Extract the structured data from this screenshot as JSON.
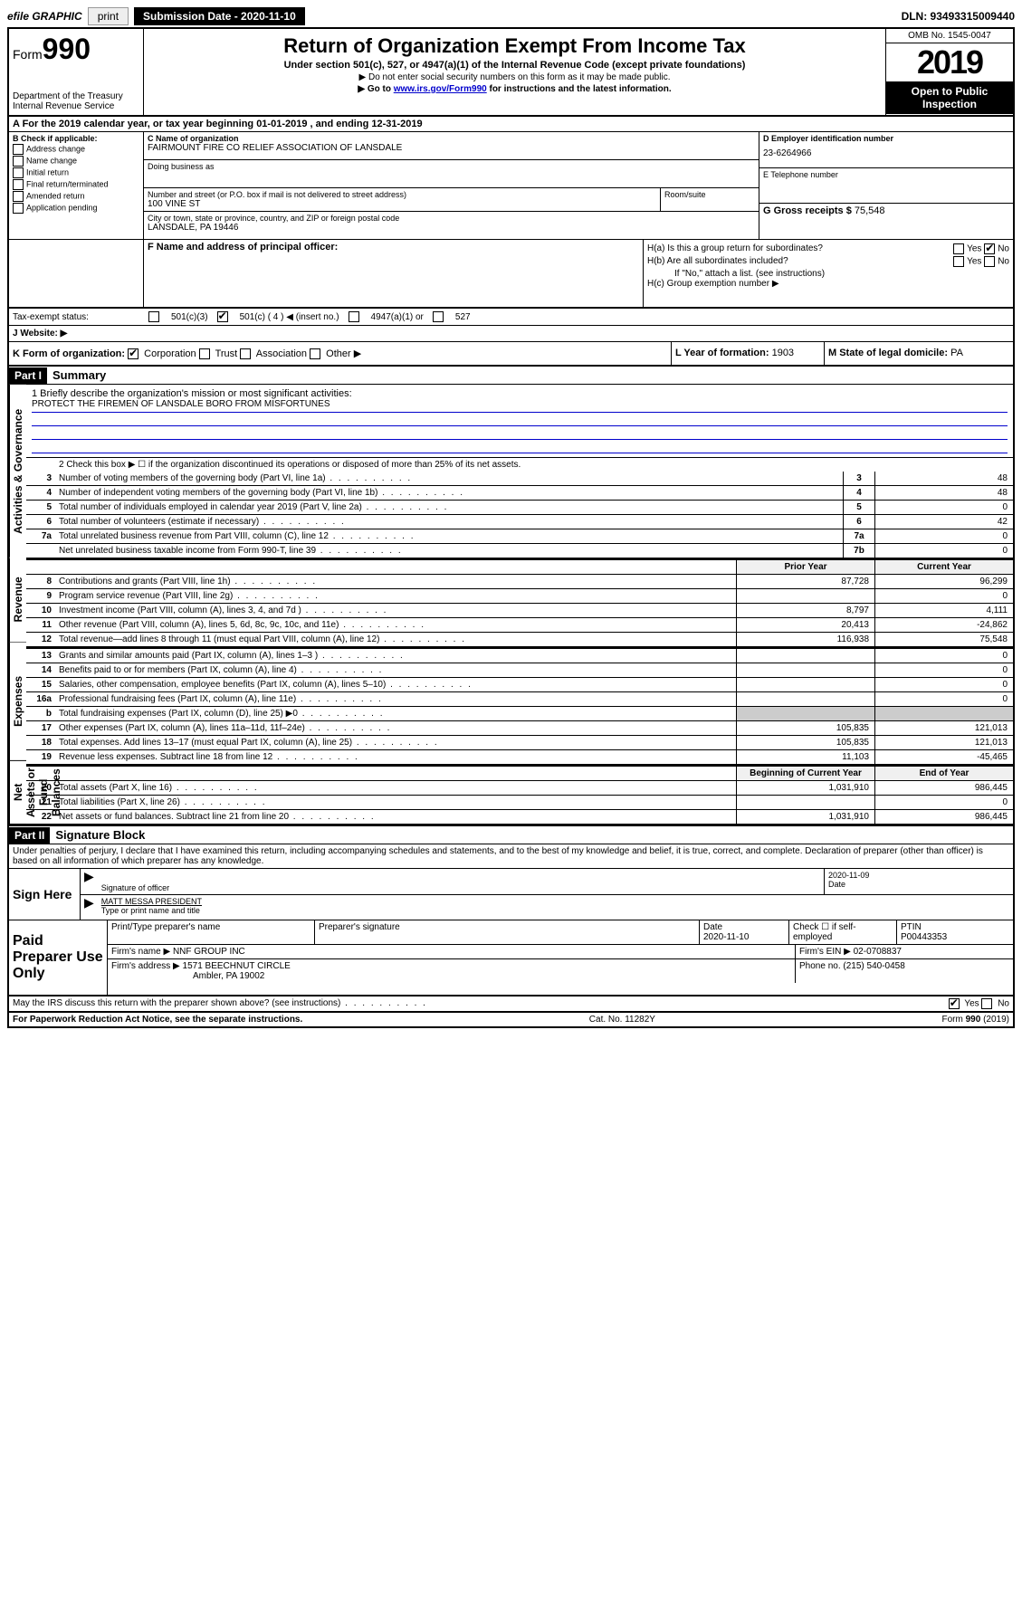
{
  "topbar": {
    "efile": "efile GRAPHIC",
    "print": "print",
    "submission_label": "Submission Date - 2020-11-10",
    "dln": "DLN: 93493315009440"
  },
  "header": {
    "form_prefix": "Form",
    "form_number": "990",
    "dept": "Department of the Treasury\nInternal Revenue Service",
    "title": "Return of Organization Exempt From Income Tax",
    "subtitle": "Under section 501(c), 527, or 4947(a)(1) of the Internal Revenue Code (except private foundations)",
    "note1": "▶ Do not enter social security numbers on this form as it may be made public.",
    "note2_prefix": "▶ Go to ",
    "note2_link": "www.irs.gov/Form990",
    "note2_suffix": " for instructions and the latest information.",
    "omb": "OMB No. 1545-0047",
    "year": "2019",
    "open": "Open to Public Inspection"
  },
  "rowA": {
    "text": "A For the 2019 calendar year, or tax year beginning 01-01-2019     , and ending 12-31-2019"
  },
  "boxB": {
    "label": "B Check if applicable:",
    "opts": [
      "Address change",
      "Name change",
      "Initial return",
      "Final return/terminated",
      "Amended return",
      "Application pending"
    ]
  },
  "boxC": {
    "name_label": "C Name of organization",
    "name": "FAIRMOUNT FIRE CO RELIEF ASSOCIATION OF LANSDALE",
    "dba_label": "Doing business as",
    "addr_label": "Number and street (or P.O. box if mail is not delivered to street address)",
    "room_label": "Room/suite",
    "addr": "100 VINE ST",
    "city_label": "City or town, state or province, country, and ZIP or foreign postal code",
    "city": "LANSDALE, PA  19446"
  },
  "boxD": {
    "label": "D Employer identification number",
    "value": "23-6264966"
  },
  "boxE": {
    "label": "E Telephone number",
    "value": ""
  },
  "boxG": {
    "label": "G Gross receipts $",
    "value": "75,548"
  },
  "boxF": {
    "label": "F Name and address of principal officer:"
  },
  "boxH": {
    "a": "H(a)  Is this a group return for subordinates?",
    "b": "H(b)  Are all subordinates included?",
    "b_note": "If \"No,\" attach a list. (see instructions)",
    "c": "H(c)  Group exemption number ▶",
    "yes": "Yes",
    "no": "No"
  },
  "taxExempt": {
    "label": "Tax-exempt status:",
    "c3": "501(c)(3)",
    "c": "501(c) ( 4 ) ◀ (insert no.)",
    "a1": "4947(a)(1) or",
    "s527": "527"
  },
  "websiteJ": {
    "label": "J   Website: ▶"
  },
  "rowK": {
    "label": "K Form of organization:",
    "corp": "Corporation",
    "trust": "Trust",
    "assoc": "Association",
    "other": "Other ▶"
  },
  "rowL": {
    "label": "L Year of formation:",
    "value": "1903"
  },
  "rowM": {
    "label": "M State of legal domicile:",
    "value": "PA"
  },
  "part1": {
    "header": "Part I",
    "title": "Summary",
    "line1_label": "1   Briefly describe the organization's mission or most significant activities:",
    "line1_value": "PROTECT THE FIREMEN OF LANSDALE BORO FROM MISFORTUNES",
    "line2": "2   Check this box ▶ ☐  if the organization discontinued its operations or disposed of more than 25% of its net assets.",
    "rows_gov": [
      {
        "n": "3",
        "desc": "Number of voting members of the governing body (Part VI, line 1a)",
        "box": "3",
        "val": "48"
      },
      {
        "n": "4",
        "desc": "Number of independent voting members of the governing body (Part VI, line 1b)",
        "box": "4",
        "val": "48"
      },
      {
        "n": "5",
        "desc": "Total number of individuals employed in calendar year 2019 (Part V, line 2a)",
        "box": "5",
        "val": "0"
      },
      {
        "n": "6",
        "desc": "Total number of volunteers (estimate if necessary)",
        "box": "6",
        "val": "42"
      },
      {
        "n": "7a",
        "desc": "Total unrelated business revenue from Part VIII, column (C), line 12",
        "box": "7a",
        "val": "0"
      },
      {
        "n": "",
        "desc": "Net unrelated business taxable income from Form 990-T, line 39",
        "box": "7b",
        "val": "0"
      }
    ],
    "col_prior": "Prior Year",
    "col_current": "Current Year",
    "rows_rev": [
      {
        "n": "8",
        "desc": "Contributions and grants (Part VIII, line 1h)",
        "prior": "87,728",
        "cur": "96,299"
      },
      {
        "n": "9",
        "desc": "Program service revenue (Part VIII, line 2g)",
        "prior": "",
        "cur": "0"
      },
      {
        "n": "10",
        "desc": "Investment income (Part VIII, column (A), lines 3, 4, and 7d )",
        "prior": "8,797",
        "cur": "4,111"
      },
      {
        "n": "11",
        "desc": "Other revenue (Part VIII, column (A), lines 5, 6d, 8c, 9c, 10c, and 11e)",
        "prior": "20,413",
        "cur": "-24,862"
      },
      {
        "n": "12",
        "desc": "Total revenue—add lines 8 through 11 (must equal Part VIII, column (A), line 12)",
        "prior": "116,938",
        "cur": "75,548"
      }
    ],
    "rows_exp": [
      {
        "n": "13",
        "desc": "Grants and similar amounts paid (Part IX, column (A), lines 1–3 )",
        "prior": "",
        "cur": "0"
      },
      {
        "n": "14",
        "desc": "Benefits paid to or for members (Part IX, column (A), line 4)",
        "prior": "",
        "cur": "0"
      },
      {
        "n": "15",
        "desc": "Salaries, other compensation, employee benefits (Part IX, column (A), lines 5–10)",
        "prior": "",
        "cur": "0"
      },
      {
        "n": "16a",
        "desc": "Professional fundraising fees (Part IX, column (A), line 11e)",
        "prior": "",
        "cur": "0"
      },
      {
        "n": "b",
        "desc": "Total fundraising expenses (Part IX, column (D), line 25) ▶0",
        "prior": "SHADE",
        "cur": "SHADE"
      },
      {
        "n": "17",
        "desc": "Other expenses (Part IX, column (A), lines 11a–11d, 11f–24e)",
        "prior": "105,835",
        "cur": "121,013"
      },
      {
        "n": "18",
        "desc": "Total expenses. Add lines 13–17 (must equal Part IX, column (A), line 25)",
        "prior": "105,835",
        "cur": "121,013"
      },
      {
        "n": "19",
        "desc": "Revenue less expenses. Subtract line 18 from line 12",
        "prior": "11,103",
        "cur": "-45,465"
      }
    ],
    "col_begin": "Beginning of Current Year",
    "col_end": "End of Year",
    "rows_net": [
      {
        "n": "20",
        "desc": "Total assets (Part X, line 16)",
        "prior": "1,031,910",
        "cur": "986,445"
      },
      {
        "n": "21",
        "desc": "Total liabilities (Part X, line 26)",
        "prior": "",
        "cur": "0"
      },
      {
        "n": "22",
        "desc": "Net assets or fund balances. Subtract line 21 from line 20",
        "prior": "1,031,910",
        "cur": "986,445"
      }
    ],
    "vlabels": {
      "gov": "Activities & Governance",
      "rev": "Revenue",
      "exp": "Expenses",
      "net": "Net Assets or Fund Balances"
    }
  },
  "part2": {
    "header": "Part II",
    "title": "Signature Block",
    "perjury": "Under penalties of perjury, I declare that I have examined this return, including accompanying schedules and statements, and to the best of my knowledge and belief, it is true, correct, and complete. Declaration of preparer (other than officer) is based on all information of which preparer has any knowledge."
  },
  "sign": {
    "label": "Sign Here",
    "sig_label": "Signature of officer",
    "date_label": "Date",
    "date": "2020-11-09",
    "name": "MATT MESSA  PRESIDENT",
    "name_label": "Type or print name and title"
  },
  "paid": {
    "label": "Paid Preparer Use Only",
    "h1": "Print/Type preparer's name",
    "h2": "Preparer's signature",
    "h3": "Date",
    "h3v": "2020-11-10",
    "h4": "Check ☐ if self-employed",
    "h5": "PTIN",
    "h5v": "P00443353",
    "firm_label": "Firm's name     ▶",
    "firm": "NNF GROUP INC",
    "ein_label": "Firm's EIN ▶",
    "ein": "02-0708837",
    "addr_label": "Firm's address ▶",
    "addr": "1571 BEECHNUT CIRCLE",
    "addr2": "Ambler, PA  19002",
    "phone_label": "Phone no.",
    "phone": "(215) 540-0458"
  },
  "footer": {
    "discuss": "May the IRS discuss this return with the preparer shown above? (see instructions)",
    "yes": "Yes",
    "no": "No",
    "paperwork": "For Paperwork Reduction Act Notice, see the separate instructions.",
    "cat": "Cat. No. 11282Y",
    "form": "Form 990 (2019)"
  }
}
